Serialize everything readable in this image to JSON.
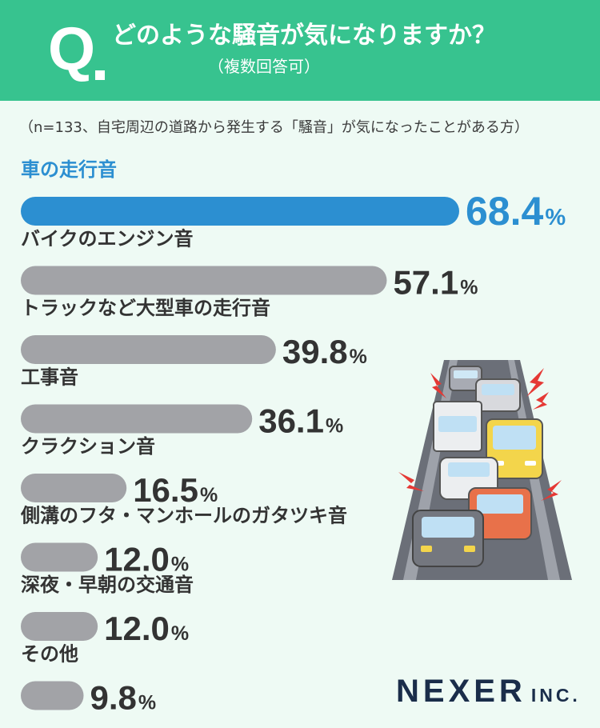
{
  "header": {
    "q_mark": "Q",
    "question": "どのような騒音が気になりますか？",
    "subnote": "（複数回答可）"
  },
  "sample_note": "（n=133、自宅周辺の道路から発生する「騒音」が気になったことがある方）",
  "brand": {
    "name": "NEXER",
    "suffix": "INC."
  },
  "colors": {
    "header_bg": "#37c38f",
    "page_bg": "#eefaf4",
    "highlight_bar": "#2c8fd1",
    "default_bar": "#a2a3a7",
    "highlight_text": "#2c8fd1",
    "text": "#333333",
    "brand": "#1a2d4a"
  },
  "chart_data": {
    "type": "bar",
    "orientation": "horizontal",
    "unit": "%",
    "highlight_index": 0,
    "categories": [
      "車の走行音",
      "バイクのエンジン音",
      "トラックなど大型車の走行音",
      "工事音",
      "クラクション音",
      "側溝のフタ・マンホールのガタツキ音",
      "深夜・早朝の交通音",
      "その他"
    ],
    "values": [
      68.4,
      57.1,
      39.8,
      36.1,
      16.5,
      12.0,
      12.0,
      9.8
    ],
    "labels": [
      "68.4",
      "57.1",
      "39.8",
      "36.1",
      "16.5",
      "12.0",
      "12.0",
      "9.8"
    ]
  }
}
